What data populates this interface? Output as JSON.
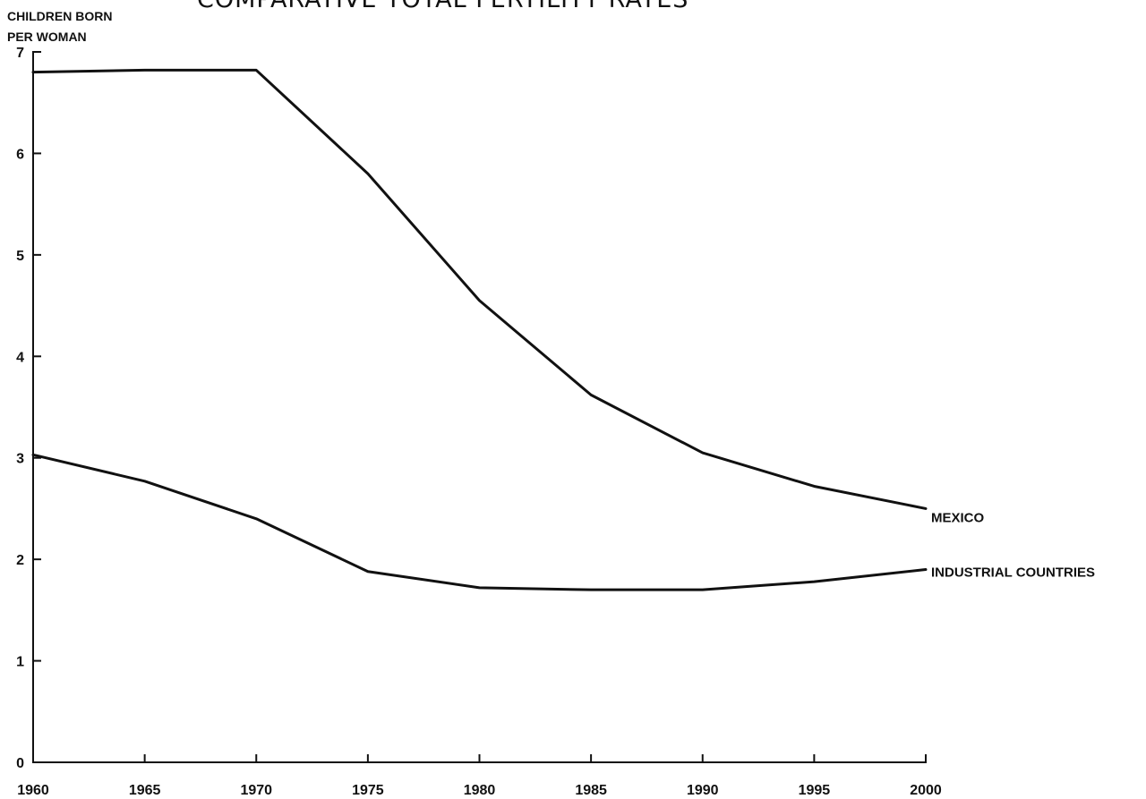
{
  "chart_data": {
    "type": "line",
    "title": "COMPARATIVE TOTAL FERTILITY RATES",
    "ylabel_lines": [
      "CHILDREN BORN",
      "PER WOMAN"
    ],
    "xlabel": "",
    "x": [
      1960,
      1965,
      1970,
      1975,
      1980,
      1985,
      1990,
      1995,
      2000
    ],
    "x_tick_labels": [
      "1960",
      "1965",
      "1970",
      "1975",
      "1980",
      "1985",
      "1990",
      "1995",
      "2000"
    ],
    "y_ticks": [
      0,
      1,
      2,
      3,
      4,
      5,
      6,
      7
    ],
    "y_tick_labels": [
      "0",
      "1",
      "2",
      "3",
      "4",
      "5",
      "6",
      "7"
    ],
    "xlim": [
      1960,
      2000
    ],
    "ylim": [
      0,
      7
    ],
    "grid": false,
    "legend": "direct labels at right end of each line",
    "series": [
      {
        "name": "MEXICO",
        "values": [
          6.8,
          6.82,
          6.82,
          5.8,
          4.55,
          3.62,
          3.05,
          2.72,
          2.5
        ]
      },
      {
        "name": "INDUSTRIAL COUNTRIES",
        "values": [
          3.03,
          2.77,
          2.4,
          1.88,
          1.72,
          1.7,
          1.7,
          1.78,
          1.9
        ]
      }
    ]
  }
}
